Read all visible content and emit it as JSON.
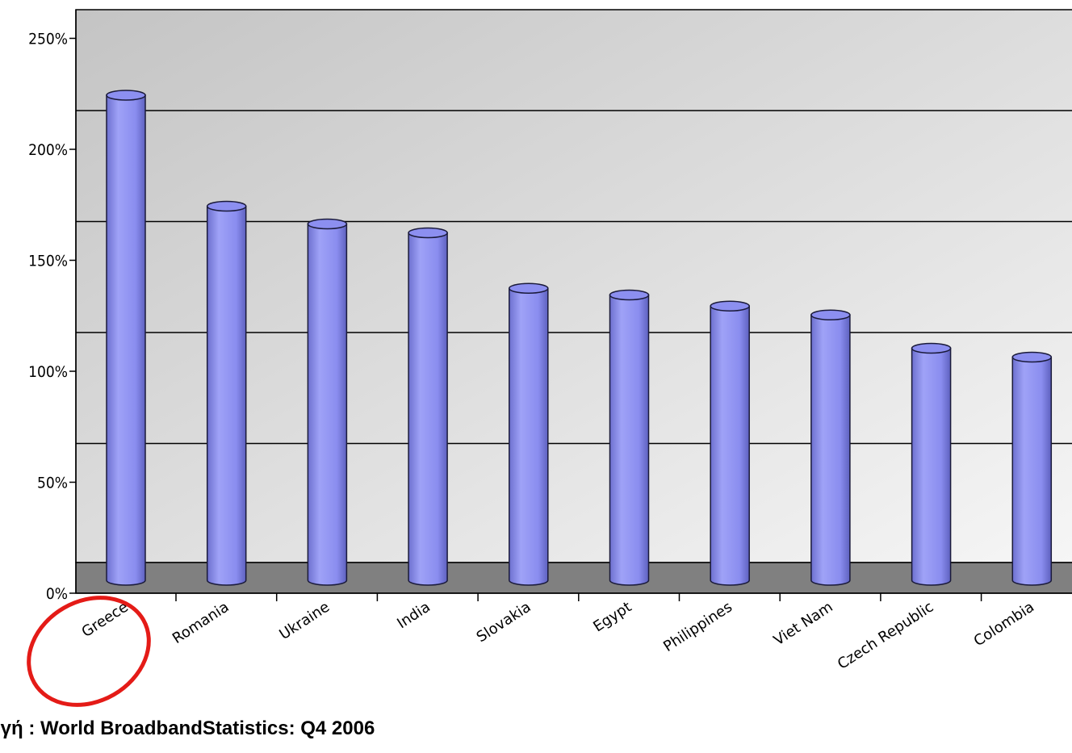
{
  "chart_data": {
    "type": "bar",
    "style": "3d-cylinder",
    "categories": [
      "Greece",
      "Romania",
      "Ukraine",
      "India",
      "Slovakia",
      "Egypt",
      "Philippines",
      "Viet Nam",
      "Czech Republic",
      "Colombia"
    ],
    "values": [
      220,
      170,
      162,
      158,
      133,
      130,
      125,
      121,
      106,
      102
    ],
    "yticks": [
      "0%",
      "50%",
      "100%",
      "150%",
      "200%",
      "250%"
    ],
    "ylim": [
      0,
      250
    ],
    "grid": true,
    "bar_color": "#9a9cf2",
    "highlighted_category": "Greece",
    "highlight_color": "#e41b17"
  },
  "source_text": "ηγή : World BroadbandStatistics: Q4 2006"
}
